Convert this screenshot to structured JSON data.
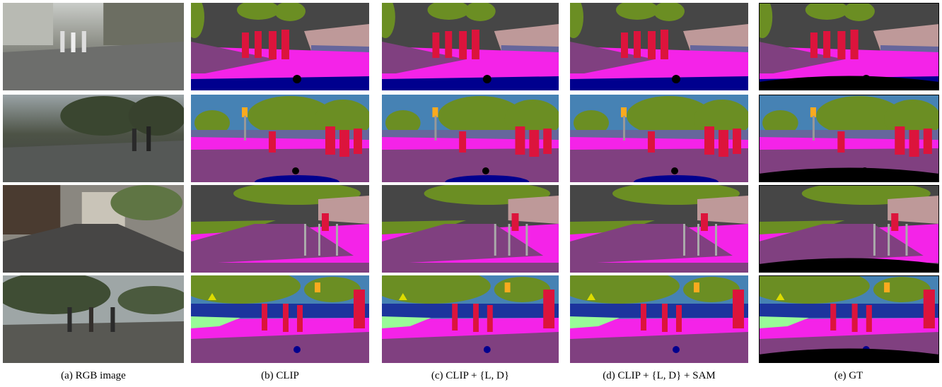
{
  "captions": [
    "(a) RGB image",
    "(b) CLIP",
    "(c) CLIP + {L, D}",
    "(d) CLIP + {L, D} + SAM",
    "(e) GT"
  ]
}
